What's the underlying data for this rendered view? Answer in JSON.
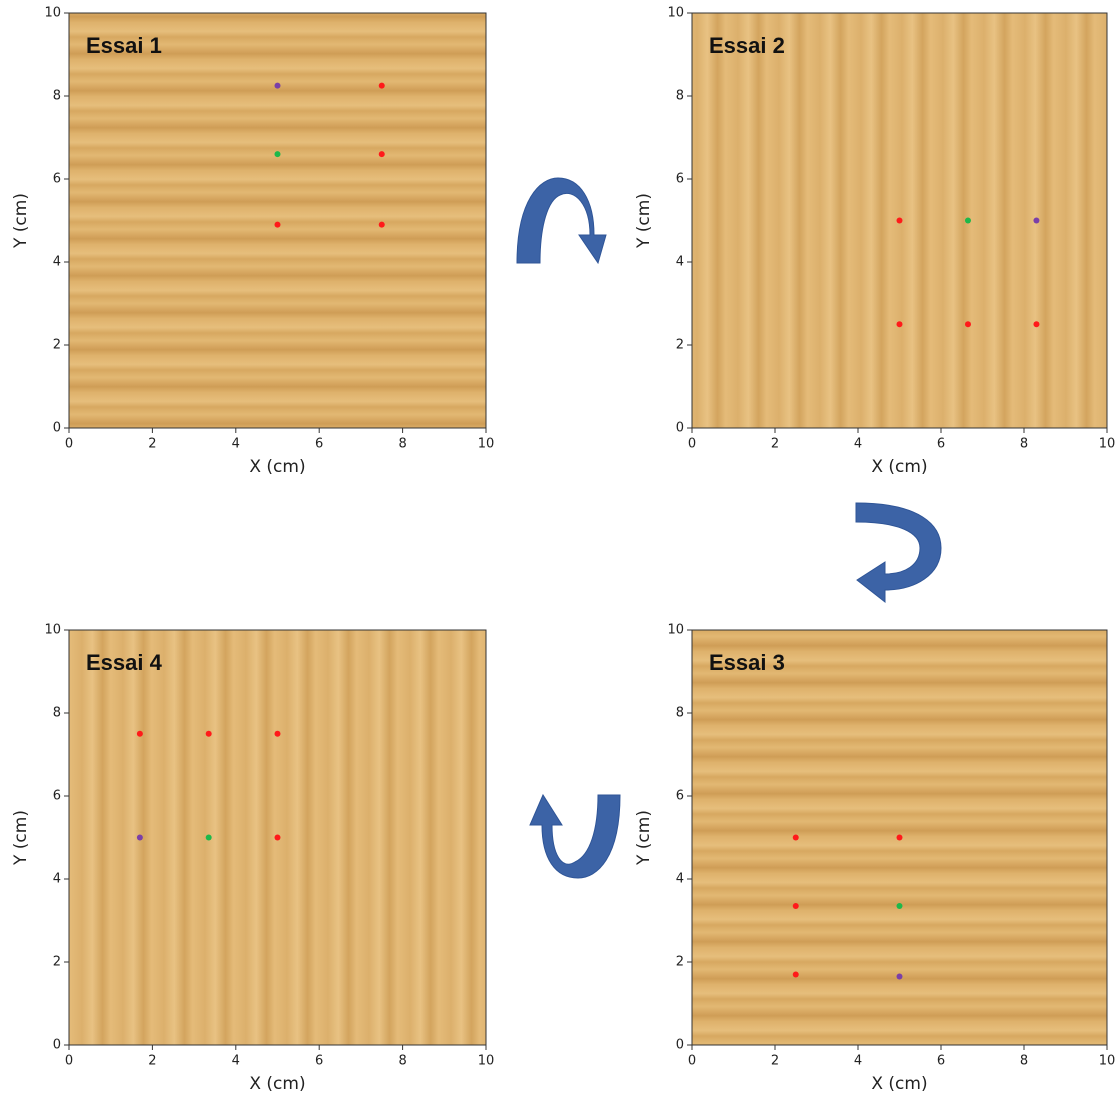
{
  "chart_data": [
    {
      "type": "scatter",
      "title": "Essai 1",
      "xlabel": "X (cm)",
      "ylabel": "Y (cm)",
      "xlim": [
        0,
        10
      ],
      "ylim": [
        0,
        10
      ],
      "xticks": [
        0,
        2,
        4,
        6,
        8,
        10
      ],
      "yticks": [
        0,
        2,
        4,
        6,
        8,
        10
      ],
      "series": [
        {
          "color": "#ff1a1a",
          "x": [
            7.5,
            7.5,
            5,
            7.5
          ],
          "values": [
            8.25,
            6.6,
            4.9,
            4.9
          ]
        },
        {
          "color": "#1db84a",
          "x": [
            5
          ],
          "values": [
            6.6
          ]
        },
        {
          "color": "#7a3fa8",
          "x": [
            5
          ],
          "values": [
            8.25
          ]
        }
      ]
    },
    {
      "type": "scatter",
      "title": "Essai 2",
      "xlabel": "X (cm)",
      "ylabel": "Y (cm)",
      "xlim": [
        0,
        10
      ],
      "ylim": [
        0,
        10
      ],
      "xticks": [
        0,
        2,
        4,
        6,
        8,
        10
      ],
      "yticks": [
        0,
        2,
        4,
        6,
        8,
        10
      ],
      "series": [
        {
          "color": "#ff1a1a",
          "x": [
            5,
            5,
            6.65,
            8.3
          ],
          "values": [
            5,
            2.5,
            2.5,
            2.5
          ]
        },
        {
          "color": "#1db84a",
          "x": [
            6.65
          ],
          "values": [
            5
          ]
        },
        {
          "color": "#7a3fa8",
          "x": [
            8.3
          ],
          "values": [
            5
          ]
        }
      ]
    },
    {
      "type": "scatter",
      "title": "Essai 3",
      "xlabel": "X (cm)",
      "ylabel": "Y (cm)",
      "xlim": [
        0,
        10
      ],
      "ylim": [
        0,
        10
      ],
      "xticks": [
        0,
        2,
        4,
        6,
        8,
        10
      ],
      "yticks": [
        0,
        2,
        4,
        6,
        8,
        10
      ],
      "series": [
        {
          "color": "#ff1a1a",
          "x": [
            2.5,
            5,
            2.5,
            2.5
          ],
          "values": [
            5,
            5,
            3.35,
            1.7
          ]
        },
        {
          "color": "#1db84a",
          "x": [
            5
          ],
          "values": [
            3.35
          ]
        },
        {
          "color": "#7a3fa8",
          "x": [
            5
          ],
          "values": [
            1.65
          ]
        }
      ]
    },
    {
      "type": "scatter",
      "title": "Essai 4",
      "xlabel": "X (cm)",
      "ylabel": "Y (cm)",
      "xlim": [
        0,
        10
      ],
      "ylim": [
        0,
        10
      ],
      "xticks": [
        0,
        2,
        4,
        6,
        8,
        10
      ],
      "yticks": [
        0,
        2,
        4,
        6,
        8,
        10
      ],
      "series": [
        {
          "color": "#ff1a1a",
          "x": [
            1.7,
            3.35,
            5,
            5
          ],
          "values": [
            7.5,
            7.5,
            7.5,
            5
          ]
        },
        {
          "color": "#1db84a",
          "x": [
            3.35
          ],
          "values": [
            5
          ]
        },
        {
          "color": "#7a3fa8",
          "x": [
            1.7
          ],
          "values": [
            5
          ]
        }
      ]
    }
  ]
}
